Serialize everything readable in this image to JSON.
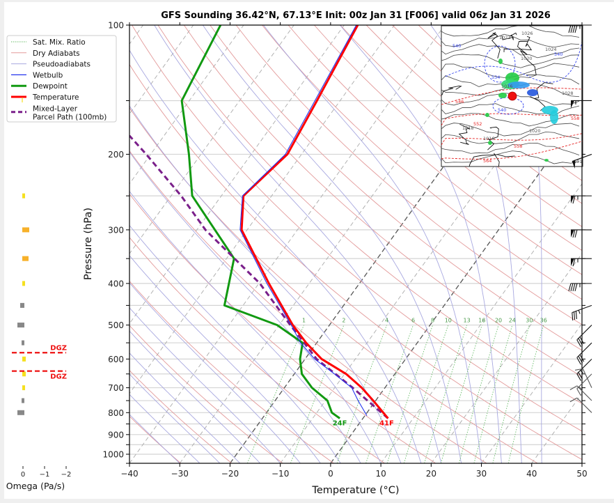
{
  "title": "GFS Sounding 36.42°N, 67.13°E Init: 00z Jan 31 [F006] valid 06z Jan 31 2026",
  "colors": {
    "temperature": "#ff0000",
    "dewpoint": "#119911",
    "wetbulb": "#2233ee",
    "parcel": "#7a1f8a",
    "dry_adiabat": "#e39a9a",
    "pseudoadiabat": "#a8a8e0",
    "mixing_ratio": "#66bb66",
    "isotherm": "#aaaaaa",
    "isotherm_key": "#555555",
    "dgz": "#ee1111",
    "omega_up_weak": "#f5e020",
    "omega_up": "#f7b12a",
    "omega_down": "#888888"
  },
  "legend": {
    "items": [
      {
        "label": "Sat. Mix. Ratio",
        "style": "dotted-green"
      },
      {
        "label": "Dry Adiabats",
        "style": "thin-red"
      },
      {
        "label": "Pseudoadiabats",
        "style": "thin-blue"
      },
      {
        "label": "Wetbulb",
        "style": "blue"
      },
      {
        "label": "Dewpoint",
        "style": "thick-green"
      },
      {
        "label": "Temperature",
        "style": "thick-red"
      },
      {
        "label": "Mixed-Layer",
        "label2": "Parcel Path (100mb)",
        "style": "dashed-purple"
      }
    ]
  },
  "chart_data": {
    "type": "line",
    "subtype": "skew-T log-p",
    "title": "GFS Sounding 36.42°N, 67.13°E Init: 00z Jan 31 [F006] valid 06z Jan 31 2026",
    "xlabel": "Temperature (°C)",
    "ylabel": "Pressure (hPa)",
    "xlim": [
      -40,
      50
    ],
    "ylim": [
      1050,
      100
    ],
    "x_ticks": [
      "−40",
      "−30",
      "−20",
      "−10",
      "0",
      "10",
      "20",
      "30",
      "40",
      "50"
    ],
    "x_tick_values": [
      -40,
      -30,
      -20,
      -10,
      0,
      10,
      20,
      30,
      40,
      50
    ],
    "y_ticks": [
      "100",
      "200",
      "300",
      "400",
      "500",
      "600",
      "700",
      "800",
      "900",
      "1000"
    ],
    "y_tick_values": [
      100,
      200,
      300,
      400,
      500,
      600,
      700,
      800,
      900,
      1000
    ],
    "grid": "horizontal every 50 hPa",
    "legend_position": "left of plot, top",
    "series": [
      {
        "name": "Temperature",
        "pressure": [
          825,
          750,
          700,
          650,
          600,
          550,
          500,
          400,
          300,
          250,
          200,
          150,
          100
        ],
        "temperature_c": [
          5,
          -0.5,
          -4.6,
          -9.7,
          -16.7,
          -22.1,
          -27.3,
          -38,
          -51.1,
          -55.6,
          -52.8,
          -54.6,
          -57.3
        ]
      },
      {
        "name": "Dewpoint",
        "pressure": [
          825,
          800,
          750,
          700,
          650,
          600,
          550,
          500,
          450,
          350,
          250,
          200,
          150,
          100
        ],
        "temperature_c": [
          -4.6,
          -7,
          -9.6,
          -14.5,
          -18.5,
          -21,
          -22.8,
          -30.4,
          -43.7,
          -48.5,
          -65.8,
          -72.4,
          -81.5,
          -84.6
        ]
      },
      {
        "name": "Wetbulb",
        "pressure": [
          813,
          750,
          700,
          650,
          600,
          550,
          500,
          400,
          300,
          250,
          200,
          150,
          100
        ],
        "temperature_c": [
          0.4,
          -3.5,
          -6.6,
          -12,
          -18.1,
          -23.2,
          -27.6,
          -38.4,
          -51.4,
          -55.8,
          -53.2,
          -55,
          -57.6
        ]
      },
      {
        "name": "Mixed-Layer Parcel Path (100mb)",
        "pressure": [
          825,
          700,
          600,
          500,
          400,
          350,
          300,
          250,
          200,
          181
        ],
        "temperature_c": [
          5,
          -6.4,
          -17.7,
          -27.8,
          -39.8,
          -48.4,
          -58.3,
          -68,
          -80.9,
          -86.9
        ]
      }
    ],
    "surface_labels": {
      "temperature": "41F",
      "dewpoint": "24F"
    },
    "mixing_ratio_labels": [
      "1",
      "2",
      "4",
      "6",
      "8",
      "10",
      "13",
      "16",
      "20",
      "24",
      "30",
      "36"
    ],
    "mixing_ratio_values_gkg": [
      1,
      2,
      4,
      6,
      8,
      10,
      13,
      16,
      20,
      24,
      30,
      36
    ],
    "mixing_ratio_label_pressure": 500,
    "wind_barbs": [
      {
        "pressure": 100,
        "speed_kt": 45,
        "direction": "W"
      },
      {
        "pressure": 150,
        "speed_kt": 55,
        "direction": "W"
      },
      {
        "pressure": 200,
        "speed_kt": 50,
        "direction": "WSW"
      },
      {
        "pressure": 250,
        "speed_kt": 65,
        "direction": "W"
      },
      {
        "pressure": 300,
        "speed_kt": 70,
        "direction": "W"
      },
      {
        "pressure": 350,
        "speed_kt": 65,
        "direction": "W"
      },
      {
        "pressure": 400,
        "speed_kt": 45,
        "direction": "W"
      },
      {
        "pressure": 450,
        "speed_kt": 35,
        "direction": "WSW"
      },
      {
        "pressure": 500,
        "speed_kt": 30,
        "direction": "SW"
      },
      {
        "pressure": 550,
        "speed_kt": 30,
        "direction": "SW"
      },
      {
        "pressure": 600,
        "speed_kt": 25,
        "direction": "SW"
      },
      {
        "pressure": 650,
        "speed_kt": 15,
        "direction": "SW"
      },
      {
        "pressure": 700,
        "speed_kt": 10,
        "direction": "NNW"
      },
      {
        "pressure": 750,
        "speed_kt": 10,
        "direction": "NW"
      },
      {
        "pressure": 800,
        "speed_kt": 10,
        "direction": "NW"
      }
    ],
    "omega": {
      "xlabel": "Omega (Pa/s)",
      "ticks": [
        "0",
        "−1",
        "−2"
      ],
      "tick_values": [
        0,
        -1,
        -2
      ],
      "dgz_label": "DGZ",
      "dgz_pressure": [
        580,
        640
      ],
      "bars": [
        {
          "pressure": 250,
          "value": -0.05
        },
        {
          "pressure": 300,
          "value": -0.2
        },
        {
          "pressure": 350,
          "value": -0.18
        },
        {
          "pressure": 400,
          "value": -0.05
        },
        {
          "pressure": 450,
          "value": 0.12
        },
        {
          "pressure": 500,
          "value": 0.2
        },
        {
          "pressure": 550,
          "value": 0.05
        },
        {
          "pressure": 600,
          "value": -0.1
        },
        {
          "pressure": 650,
          "value": -0.1
        },
        {
          "pressure": 700,
          "value": -0.05
        },
        {
          "pressure": 750,
          "value": 0.07
        },
        {
          "pressure": 800,
          "value": 0.2
        }
      ]
    }
  },
  "inset_map": {
    "description": "Synoptic inset map with station marker",
    "contour_labels_black": [
      "1022",
      "1026",
      "1024",
      "1020",
      "1016",
      "1018",
      "1016",
      "1020",
      "1028",
      "101"
    ],
    "contour_labels_red": [
      "546",
      "552",
      "558",
      "558",
      "564"
    ],
    "contour_labels_blue": [
      "540",
      "534",
      "540",
      "540"
    ]
  }
}
